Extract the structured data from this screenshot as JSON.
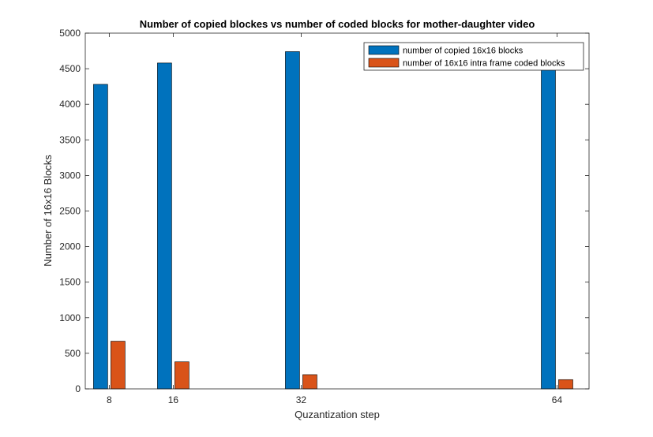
{
  "chart_data": {
    "type": "bar",
    "title": "Number of copied blockes vs number of coded blocks for mother-daughter video",
    "xlabel": "Quzantization step",
    "ylabel": "Number of 16x16 Blocks",
    "x": [
      8,
      16,
      32,
      64
    ],
    "x_tick_labels": [
      "8",
      "16",
      "32",
      "64"
    ],
    "xlim": [
      5,
      68
    ],
    "ylim": [
      0,
      5000
    ],
    "y_ticks": [
      0,
      500,
      1000,
      1500,
      2000,
      2500,
      3000,
      3500,
      4000,
      4500,
      5000
    ],
    "y_tick_labels": [
      "0",
      "500",
      "1000",
      "1500",
      "2000",
      "2500",
      "3000",
      "3500",
      "4000",
      "4500",
      "5000"
    ],
    "series": [
      {
        "name": "number of copied 16x16 blocks",
        "color": "#0072BD",
        "values": [
          4280,
          4580,
          4740,
          4520
        ]
      },
      {
        "name": "number of 16x16 intra frame coded blocks",
        "color": "#D95319",
        "values": [
          670,
          380,
          200,
          130
        ]
      }
    ],
    "legend_position": "top-right",
    "grid": false
  }
}
